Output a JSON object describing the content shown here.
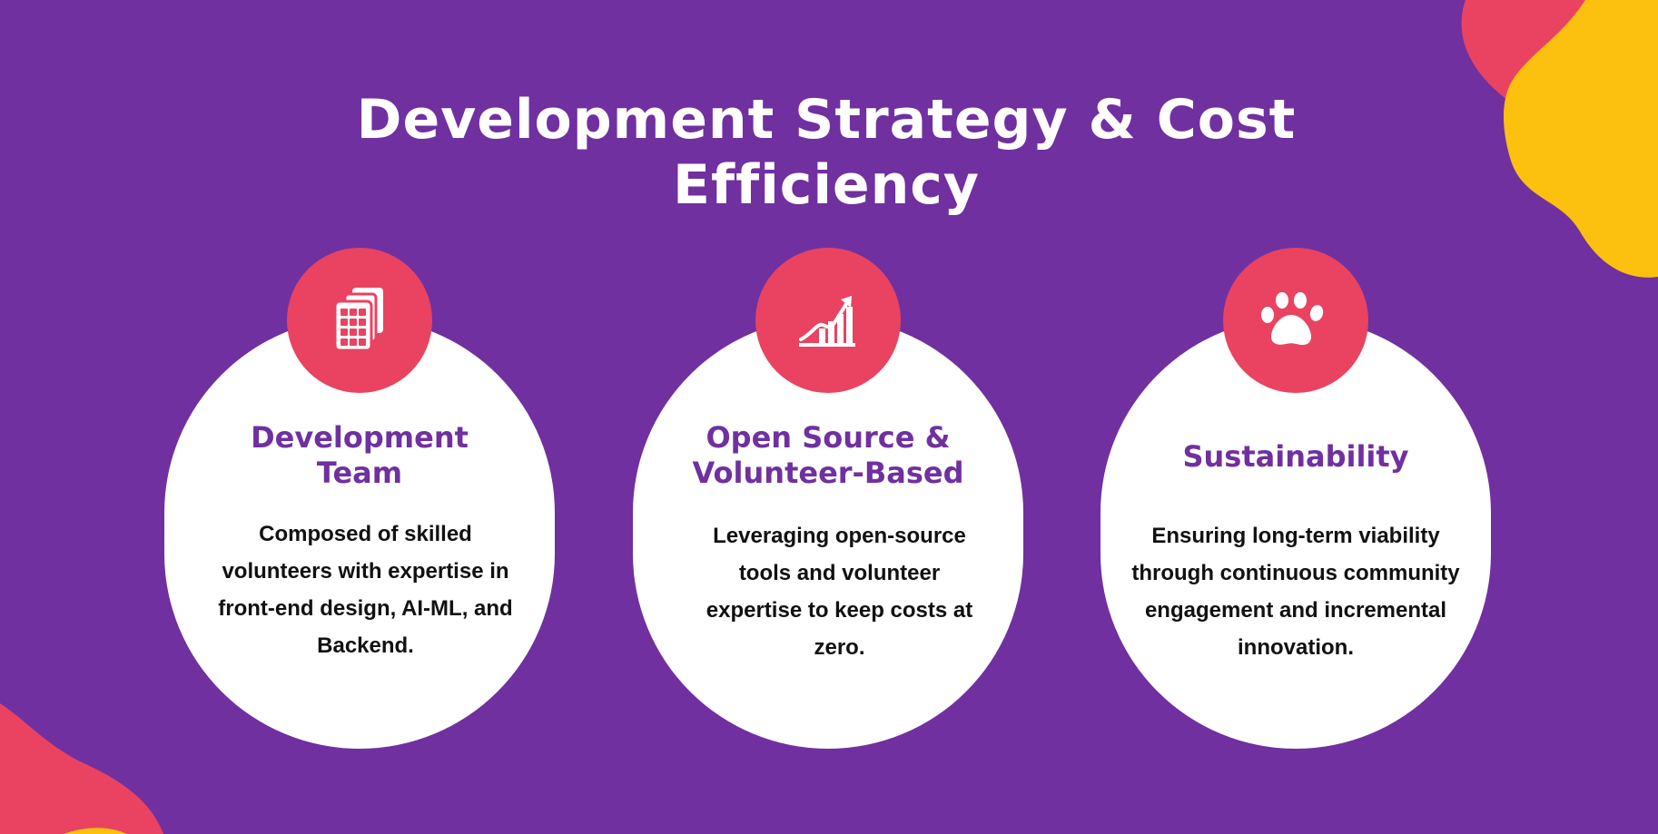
{
  "slide": {
    "title": "Development Strategy & Cost Efficiency",
    "colors": {
      "background": "#7030a0",
      "accent_pink": "#e94361",
      "accent_yellow": "#fcc00f",
      "card": "#ffffff",
      "heading_purple": "#7030a0",
      "body_text": "#111111"
    },
    "cards": [
      {
        "icon": "calculator-stack-icon",
        "title": "Development Team",
        "text": "Composed of skilled volunteers with expertise in front-end design, AI-ML, and Backend."
      },
      {
        "icon": "growth-chart-icon",
        "title": "Open Source & Volunteer-Based",
        "text": "Leveraging open-source tools and volunteer expertise to keep costs at zero."
      },
      {
        "icon": "paw-icon",
        "title": "Sustainability",
        "text": "Ensuring long-term viability through continuous community engagement and incremental innovation."
      }
    ]
  }
}
